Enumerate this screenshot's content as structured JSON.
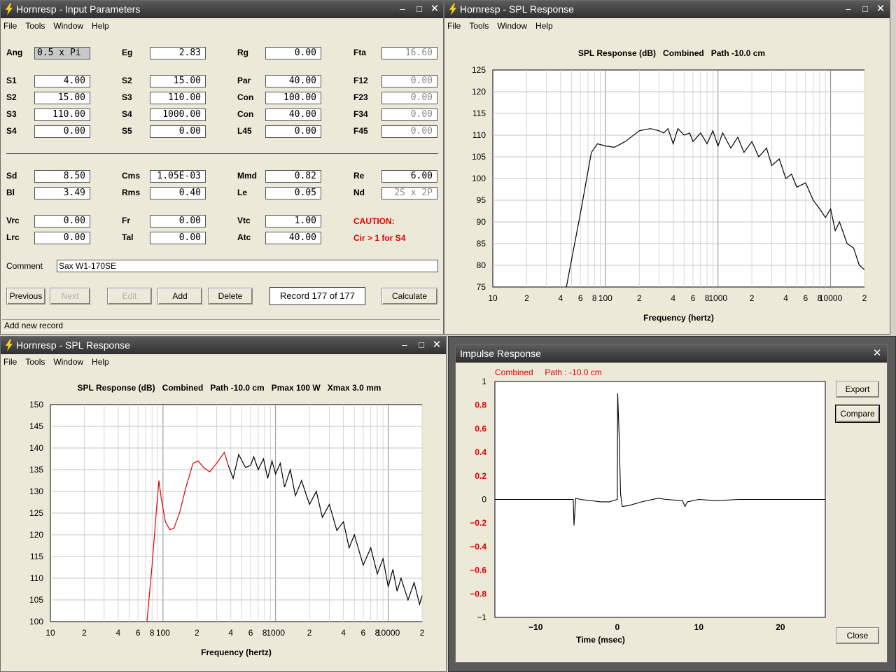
{
  "input_window": {
    "title": "Hornresp - Input Parameters",
    "menu": [
      "File",
      "Tools",
      "Window",
      "Help"
    ],
    "row_top": [
      {
        "label": "Ang",
        "value": "0.5 x Pi"
      },
      {
        "label": "Eg",
        "value": "2.83"
      },
      {
        "label": "Rg",
        "value": "0.00"
      },
      {
        "label": "Fta",
        "value": "16.60"
      }
    ],
    "grid1": [
      [
        {
          "label": "S1",
          "value": "4.00"
        },
        {
          "label": "S2",
          "value": "15.00"
        },
        {
          "label": "Par",
          "value": "40.00"
        },
        {
          "label": "F12",
          "value": "0.00"
        }
      ],
      [
        {
          "label": "S2",
          "value": "15.00"
        },
        {
          "label": "S3",
          "value": "110.00"
        },
        {
          "label": "Con",
          "value": "100.00"
        },
        {
          "label": "F23",
          "value": "0.00"
        }
      ],
      [
        {
          "label": "S3",
          "value": "110.00"
        },
        {
          "label": "S4",
          "value": "1000.00"
        },
        {
          "label": "Con",
          "value": "40.00"
        },
        {
          "label": "F34",
          "value": "0.00"
        }
      ],
      [
        {
          "label": "S4",
          "value": "0.00"
        },
        {
          "label": "S5",
          "value": "0.00"
        },
        {
          "label": "L45",
          "value": "0.00"
        },
        {
          "label": "F45",
          "value": "0.00"
        }
      ]
    ],
    "grid2": [
      [
        {
          "label": "Sd",
          "value": "8.50"
        },
        {
          "label": "Cms",
          "value": "1.05E-03"
        },
        {
          "label": "Mmd",
          "value": "0.82"
        },
        {
          "label": "Re",
          "value": "6.00"
        }
      ],
      [
        {
          "label": "Bl",
          "value": "3.49"
        },
        {
          "label": "Rms",
          "value": "0.40"
        },
        {
          "label": "Le",
          "value": "0.05"
        },
        {
          "label": "Nd",
          "value": "2S x 2P"
        }
      ]
    ],
    "grid3": [
      [
        {
          "label": "Vrc",
          "value": "0.00"
        },
        {
          "label": "Fr",
          "value": "0.00"
        },
        {
          "label": "Vtc",
          "value": "1.00"
        }
      ],
      [
        {
          "label": "Lrc",
          "value": "0.00"
        },
        {
          "label": "Tal",
          "value": "0.00"
        },
        {
          "label": "Atc",
          "value": "40.00"
        }
      ]
    ],
    "caution_title": "CAUTION:",
    "caution_text": "Cir > 1 for S4",
    "comment_label": "Comment",
    "comment_value": "Sax W1-170SE",
    "buttons": {
      "previous": "Previous",
      "next": "Next",
      "edit": "Edit",
      "add": "Add",
      "delete": "Delete",
      "calculate": "Calculate"
    },
    "record": "Record 177 of 177",
    "status": "Add new record"
  },
  "spl_top": {
    "title": "Hornresp - SPL Response",
    "menu": [
      "File",
      "Tools",
      "Window",
      "Help"
    ],
    "chart_data": {
      "type": "line",
      "title": "SPL Response (dB)   Combined   Path -10.0 cm",
      "xlabel": "Frequency (hertz)",
      "x_scale": "log",
      "xlim": [
        10,
        20000
      ],
      "x_tick_labels": [
        "10",
        "2",
        "4",
        "6",
        "8",
        "100",
        "2",
        "4",
        "6",
        "8",
        "1000",
        "2",
        "4",
        "6",
        "8",
        "10000",
        "2"
      ],
      "ylim": [
        75,
        125
      ],
      "y_ticks": [
        75,
        80,
        85,
        90,
        95,
        100,
        105,
        110,
        115,
        120,
        125
      ],
      "grid": true,
      "series": [
        {
          "color": "#000000",
          "points": [
            [
              45,
              75
            ],
            [
              60,
              92
            ],
            [
              75,
              106
            ],
            [
              85,
              108
            ],
            [
              100,
              107.5
            ],
            [
              120,
              107.2
            ],
            [
              150,
              108.5
            ],
            [
              200,
              111
            ],
            [
              250,
              111.5
            ],
            [
              300,
              111
            ],
            [
              330,
              110.5
            ],
            [
              360,
              111.5
            ],
            [
              400,
              108
            ],
            [
              440,
              111.5
            ],
            [
              500,
              110
            ],
            [
              560,
              110.5
            ],
            [
              600,
              108.5
            ],
            [
              700,
              110.5
            ],
            [
              800,
              108
            ],
            [
              900,
              111
            ],
            [
              1000,
              107.5
            ],
            [
              1100,
              110.5
            ],
            [
              1300,
              107
            ],
            [
              1500,
              109.5
            ],
            [
              1700,
              106
            ],
            [
              2000,
              108.5
            ],
            [
              2300,
              105
            ],
            [
              2700,
              107
            ],
            [
              3000,
              103
            ],
            [
              3500,
              104.5
            ],
            [
              4000,
              100
            ],
            [
              4500,
              101
            ],
            [
              5000,
              98
            ],
            [
              6000,
              99
            ],
            [
              7000,
              95
            ],
            [
              8000,
              93
            ],
            [
              9000,
              91
            ],
            [
              10000,
              93
            ],
            [
              11000,
              88
            ],
            [
              12000,
              90
            ],
            [
              14000,
              85
            ],
            [
              16000,
              84
            ],
            [
              18000,
              80
            ],
            [
              20000,
              79
            ]
          ]
        }
      ]
    }
  },
  "spl_bottom": {
    "title": "Hornresp - SPL Response",
    "menu": [
      "File",
      "Tools",
      "Window",
      "Help"
    ],
    "chart_data": {
      "type": "line",
      "title": "SPL Response (dB)   Combined   Path -10.0 cm   Pmax 100 W   Xmax 3.0 mm",
      "xlabel": "Frequency (hertz)",
      "x_scale": "log",
      "xlim": [
        10,
        20000
      ],
      "x_tick_labels": [
        "10",
        "2",
        "4",
        "6",
        "8",
        "100",
        "2",
        "4",
        "6",
        "8",
        "1000",
        "2",
        "4",
        "6",
        "8",
        "10000",
        "2"
      ],
      "ylim": [
        100,
        150
      ],
      "y_ticks": [
        100,
        105,
        110,
        115,
        120,
        125,
        130,
        135,
        140,
        145,
        150
      ],
      "grid": true,
      "series": [
        {
          "color": "#e00000",
          "points": [
            [
              72,
              100
            ],
            [
              80,
              113
            ],
            [
              87,
              125
            ],
            [
              92,
              132.5
            ],
            [
              97,
              128
            ],
            [
              105,
              123
            ],
            [
              115,
              121.2
            ],
            [
              125,
              121.5
            ],
            [
              140,
              125
            ],
            [
              160,
              131
            ],
            [
              185,
              136.5
            ],
            [
              205,
              137
            ],
            [
              230,
              135.5
            ],
            [
              260,
              134.5
            ],
            [
              290,
              136
            ],
            [
              320,
              137.5
            ],
            [
              350,
              139
            ],
            [
              380,
              136
            ]
          ]
        },
        {
          "color": "#000000",
          "points": [
            [
              380,
              136
            ],
            [
              420,
              133
            ],
            [
              470,
              138.5
            ],
            [
              540,
              135.5
            ],
            [
              600,
              136
            ],
            [
              640,
              138
            ],
            [
              700,
              135
            ],
            [
              780,
              137.5
            ],
            [
              850,
              133
            ],
            [
              930,
              137
            ],
            [
              1000,
              134
            ],
            [
              1100,
              136.5
            ],
            [
              1200,
              131
            ],
            [
              1350,
              135
            ],
            [
              1500,
              129
            ],
            [
              1700,
              132.5
            ],
            [
              2000,
              127
            ],
            [
              2300,
              130
            ],
            [
              2600,
              124
            ],
            [
              3000,
              127
            ],
            [
              3500,
              121
            ],
            [
              4000,
              123
            ],
            [
              4500,
              117
            ],
            [
              5000,
              120
            ],
            [
              6000,
              113
            ],
            [
              7000,
              117
            ],
            [
              8000,
              111
            ],
            [
              9000,
              114.5
            ],
            [
              10000,
              108
            ],
            [
              11000,
              112
            ],
            [
              12000,
              107
            ],
            [
              13000,
              110
            ],
            [
              15000,
              105
            ],
            [
              17000,
              109
            ],
            [
              19000,
              104
            ],
            [
              20000,
              106
            ]
          ]
        }
      ]
    }
  },
  "impulse": {
    "title": "Impulse Response",
    "legend": "Combined     Path : -10.0 cm",
    "buttons": {
      "export": "Export",
      "compare": "Compare",
      "close": "Close"
    },
    "chart_data": {
      "type": "line",
      "xlabel": "Time (msec)",
      "xlim": [
        -15,
        25.5
      ],
      "x_ticks": [
        -10,
        0,
        10,
        20
      ],
      "x_tick_labels": [
        "−10",
        "0",
        "10",
        "20"
      ],
      "ylim": [
        -1,
        1
      ],
      "y_ticks": [
        1,
        0.8,
        0.6,
        0.4,
        0.2,
        0,
        -0.2,
        -0.4,
        -0.6,
        -0.8,
        -1
      ],
      "y_tick_labels": [
        "1",
        "0.8",
        "0.6",
        "0.4",
        "0.2",
        "0",
        "−0.2",
        "−0.4",
        "−0.6",
        "−0.8",
        "−1"
      ],
      "grid": false,
      "series": [
        {
          "color": "#000000",
          "points": [
            [
              -15,
              0
            ],
            [
              -5.4,
              0
            ],
            [
              -5.3,
              -0.22
            ],
            [
              -5.1,
              0.01
            ],
            [
              -4.5,
              0
            ],
            [
              -2,
              -0.02
            ],
            [
              -1,
              -0.02
            ],
            [
              0,
              0
            ],
            [
              0.05,
              0.9
            ],
            [
              0.25,
              0.5
            ],
            [
              0.4,
              0.05
            ],
            [
              0.6,
              -0.06
            ],
            [
              1.5,
              -0.05
            ],
            [
              3,
              -0.02
            ],
            [
              5,
              0.01
            ],
            [
              6,
              0
            ],
            [
              8,
              -0.01
            ],
            [
              8.3,
              -0.06
            ],
            [
              8.6,
              -0.02
            ],
            [
              10,
              0
            ],
            [
              12,
              -0.01
            ],
            [
              15,
              0
            ],
            [
              20,
              0
            ],
            [
              25.5,
              0
            ]
          ]
        }
      ]
    }
  }
}
